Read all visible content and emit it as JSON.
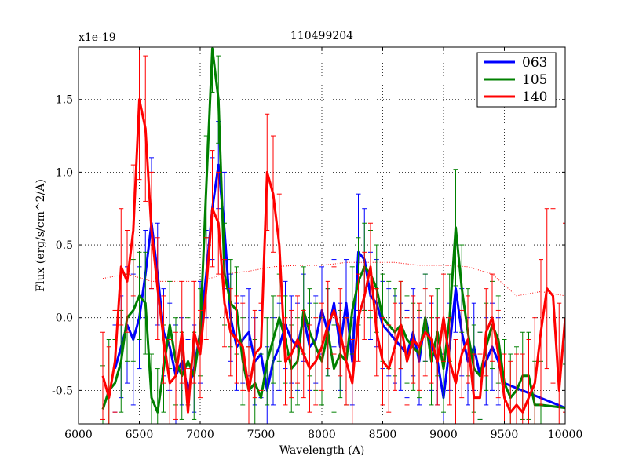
{
  "chart_data": {
    "type": "line",
    "title": "110499204",
    "xlabel": "Wavelength (A)",
    "ylabel": "Flux (erg/s/cm^2/A)",
    "y_offset_label": "x1e-19",
    "xlim": [
      6000,
      10000
    ],
    "ylim": [
      -0.73,
      1.86
    ],
    "xticks": [
      6000,
      6500,
      7000,
      7500,
      8000,
      8500,
      9000,
      9500,
      10000
    ],
    "xtick_labels": [
      "6000",
      "6500",
      "7000",
      "7500",
      "8000",
      "8500",
      "9000",
      "9500",
      "10000"
    ],
    "yticks": [
      -0.5,
      0.0,
      0.5,
      1.0,
      1.5
    ],
    "ytick_labels": [
      "-0.5",
      "0.0",
      "0.5",
      "1.0",
      "1.5"
    ],
    "grid": true,
    "legend": "top-right",
    "series": [
      {
        "name": "063",
        "color": "#0000ff",
        "error_color": "#0000ff",
        "x": [
          6300,
          6350,
          6400,
          6450,
          6500,
          6550,
          6600,
          6650,
          6700,
          6750,
          6800,
          6850,
          6900,
          6950,
          7000,
          7050,
          7100,
          7150,
          7200,
          7250,
          7300,
          7350,
          7400,
          7450,
          7500,
          7550,
          7600,
          7650,
          7700,
          7750,
          7800,
          7850,
          7900,
          7950,
          8000,
          8050,
          8100,
          8150,
          8200,
          8250,
          8300,
          8350,
          8400,
          8450,
          8500,
          8550,
          8600,
          8650,
          8700,
          8750,
          8800,
          8850,
          8900,
          8950,
          9000,
          9050,
          9100,
          9150,
          9200,
          9250,
          9300,
          9350,
          9400,
          9450,
          9500,
          10000
        ],
        "y": [
          -0.35,
          -0.2,
          -0.05,
          -0.15,
          0.0,
          0.3,
          0.65,
          0.3,
          -0.1,
          -0.2,
          -0.4,
          -0.3,
          -0.5,
          -0.35,
          -0.1,
          0.3,
          0.75,
          1.05,
          0.6,
          0.0,
          -0.2,
          -0.15,
          -0.1,
          -0.3,
          -0.25,
          -0.5,
          -0.3,
          -0.2,
          -0.05,
          -0.15,
          -0.2,
          0.0,
          -0.2,
          -0.15,
          0.05,
          -0.1,
          0.1,
          -0.2,
          0.1,
          -0.3,
          0.45,
          0.4,
          0.15,
          0.1,
          -0.05,
          -0.1,
          -0.15,
          -0.2,
          -0.25,
          -0.1,
          -0.3,
          0.0,
          -0.2,
          -0.3,
          -0.55,
          -0.2,
          0.2,
          -0.1,
          -0.3,
          -0.2,
          -0.4,
          -0.3,
          -0.2,
          -0.3,
          -0.45,
          -0.62
        ],
        "err": [
          0.3,
          0.35,
          0.4,
          0.45,
          0.35,
          0.3,
          0.45,
          0.35,
          0.3,
          0.3,
          0.35,
          0.3,
          0.35,
          0.3,
          0.35,
          0.3,
          0.35,
          0.3,
          0.4,
          0.3,
          0.3,
          0.3,
          0.3,
          0.3,
          0.3,
          0.3,
          0.3,
          0.3,
          0.3,
          0.3,
          0.3,
          0.3,
          0.3,
          0.3,
          0.3,
          0.3,
          0.3,
          0.3,
          0.3,
          0.3,
          0.4,
          0.35,
          0.3,
          0.3,
          0.3,
          0.3,
          0.3,
          0.3,
          0.3,
          0.3,
          0.3,
          0.3,
          0.3,
          0.3,
          0.3,
          0.3,
          0.3,
          0.3,
          0.3,
          0.3,
          0.3,
          0.3,
          0.3,
          0.3,
          0.3,
          0.3
        ]
      },
      {
        "name": "105",
        "color": "#008000",
        "error_color": "#008000",
        "x": [
          6200,
          6250,
          6300,
          6350,
          6400,
          6450,
          6500,
          6550,
          6600,
          6650,
          6700,
          6750,
          6800,
          6850,
          6900,
          6950,
          7000,
          7050,
          7100,
          7150,
          7200,
          7250,
          7300,
          7350,
          7400,
          7450,
          7500,
          7550,
          7600,
          7650,
          7700,
          7750,
          7800,
          7850,
          7900,
          7950,
          8000,
          8050,
          8100,
          8150,
          8200,
          8250,
          8300,
          8350,
          8400,
          8450,
          8500,
          8550,
          8600,
          8650,
          8700,
          8750,
          8800,
          8850,
          8900,
          8950,
          9000,
          9050,
          9100,
          9150,
          9200,
          9250,
          9300,
          9350,
          9400,
          9450,
          9500,
          9550,
          9600,
          9650,
          9700,
          9750,
          9800,
          10000
        ],
        "y": [
          -0.63,
          -0.5,
          -0.45,
          -0.3,
          0.0,
          0.05,
          0.15,
          0.1,
          -0.55,
          -0.65,
          -0.35,
          -0.05,
          -0.3,
          -0.4,
          -0.3,
          -0.4,
          -0.1,
          0.9,
          1.85,
          1.5,
          0.3,
          0.1,
          0.05,
          -0.3,
          -0.5,
          -0.45,
          -0.55,
          -0.3,
          -0.15,
          0.0,
          -0.15,
          -0.35,
          -0.3,
          0.05,
          -0.1,
          -0.2,
          -0.3,
          -0.1,
          -0.35,
          -0.25,
          -0.3,
          0.05,
          0.25,
          0.35,
          0.3,
          0.2,
          0.0,
          -0.05,
          -0.1,
          -0.05,
          -0.15,
          -0.2,
          -0.25,
          0.0,
          -0.3,
          -0.1,
          -0.35,
          0.0,
          0.62,
          0.2,
          -0.1,
          -0.35,
          -0.4,
          -0.2,
          -0.05,
          -0.15,
          -0.45,
          -0.55,
          -0.5,
          -0.4,
          -0.4,
          -0.6,
          -0.6,
          -0.62
        ],
        "err": [
          0.3,
          0.35,
          0.3,
          0.35,
          0.3,
          0.35,
          0.3,
          0.35,
          0.3,
          0.3,
          0.3,
          0.3,
          0.3,
          0.3,
          0.3,
          0.3,
          0.3,
          0.35,
          0.3,
          0.3,
          0.35,
          0.3,
          0.3,
          0.3,
          0.3,
          0.3,
          0.3,
          0.3,
          0.3,
          0.3,
          0.3,
          0.3,
          0.3,
          0.3,
          0.3,
          0.3,
          0.3,
          0.3,
          0.3,
          0.3,
          0.3,
          0.3,
          0.3,
          0.3,
          0.3,
          0.3,
          0.3,
          0.3,
          0.3,
          0.3,
          0.3,
          0.3,
          0.3,
          0.3,
          0.3,
          0.3,
          0.3,
          0.3,
          0.4,
          0.3,
          0.3,
          0.3,
          0.3,
          0.3,
          0.3,
          0.3,
          0.3,
          0.3,
          0.3,
          0.3,
          0.3,
          0.3,
          0.3,
          0.3
        ]
      },
      {
        "name": "140",
        "color": "#ff0000",
        "error_color": "#ff0000",
        "x": [
          6200,
          6250,
          6300,
          6350,
          6400,
          6450,
          6500,
          6550,
          6600,
          6650,
          6700,
          6750,
          6800,
          6850,
          6900,
          6950,
          7000,
          7050,
          7100,
          7150,
          7200,
          7250,
          7300,
          7350,
          7400,
          7450,
          7500,
          7550,
          7600,
          7650,
          7700,
          7750,
          7800,
          7850,
          7900,
          7950,
          8000,
          8050,
          8100,
          8150,
          8200,
          8250,
          8300,
          8350,
          8400,
          8450,
          8500,
          8550,
          8600,
          8650,
          8700,
          8750,
          8800,
          8850,
          8900,
          8950,
          9000,
          9050,
          9100,
          9150,
          9200,
          9250,
          9300,
          9350,
          9400,
          9450,
          9500,
          9550,
          9600,
          9650,
          9700,
          9750,
          9800,
          9850,
          9900,
          9950,
          10000
        ],
        "y": [
          -0.4,
          -0.55,
          -0.3,
          0.35,
          0.25,
          0.6,
          1.5,
          1.3,
          0.6,
          0.2,
          -0.15,
          -0.45,
          -0.4,
          -0.1,
          -0.65,
          -0.1,
          -0.25,
          0.2,
          0.75,
          0.65,
          0.1,
          -0.1,
          -0.15,
          -0.2,
          -0.5,
          -0.25,
          -0.2,
          1.0,
          0.85,
          0.5,
          -0.3,
          -0.25,
          -0.15,
          -0.25,
          -0.35,
          -0.3,
          -0.2,
          -0.05,
          0.05,
          -0.1,
          -0.3,
          -0.45,
          0.0,
          0.15,
          0.35,
          -0.1,
          -0.3,
          -0.35,
          -0.2,
          -0.05,
          -0.3,
          -0.15,
          -0.2,
          -0.1,
          -0.15,
          -0.3,
          0.0,
          -0.3,
          -0.45,
          -0.25,
          -0.15,
          -0.55,
          -0.55,
          -0.1,
          0.0,
          -0.25,
          -0.55,
          -0.65,
          -0.6,
          -0.65,
          -0.55,
          -0.45,
          -0.1,
          0.2,
          0.15,
          -0.5,
          0.0
        ],
        "err": [
          0.3,
          0.35,
          0.35,
          0.4,
          0.35,
          0.45,
          0.55,
          0.5,
          0.4,
          0.35,
          0.3,
          0.3,
          0.3,
          0.35,
          0.3,
          0.35,
          0.3,
          0.35,
          0.4,
          0.35,
          0.3,
          0.3,
          0.3,
          0.3,
          0.3,
          0.3,
          0.3,
          0.4,
          0.4,
          0.35,
          0.3,
          0.3,
          0.3,
          0.3,
          0.3,
          0.3,
          0.3,
          0.3,
          0.3,
          0.3,
          0.3,
          0.3,
          0.3,
          0.3,
          0.3,
          0.3,
          0.3,
          0.3,
          0.3,
          0.3,
          0.3,
          0.3,
          0.3,
          0.3,
          0.3,
          0.3,
          0.3,
          0.3,
          0.3,
          0.3,
          0.3,
          0.3,
          0.3,
          0.3,
          0.3,
          0.3,
          0.3,
          0.35,
          0.35,
          0.4,
          0.4,
          0.45,
          0.5,
          0.55,
          0.6,
          0.6,
          0.65
        ]
      }
    ],
    "background_model": {
      "name": "model",
      "color": "#ff0000",
      "style": "dotted",
      "x": [
        6200,
        6400,
        6600,
        6800,
        7000,
        7200,
        7400,
        7600,
        7800,
        8000,
        8200,
        8400,
        8600,
        8800,
        9000,
        9200,
        9400,
        9600,
        9800,
        10000
      ],
      "y": [
        0.27,
        0.3,
        0.25,
        0.25,
        0.25,
        0.3,
        0.32,
        0.35,
        0.36,
        0.36,
        0.38,
        0.38,
        0.38,
        0.36,
        0.36,
        0.35,
        0.3,
        0.15,
        0.18,
        0.15
      ]
    }
  }
}
